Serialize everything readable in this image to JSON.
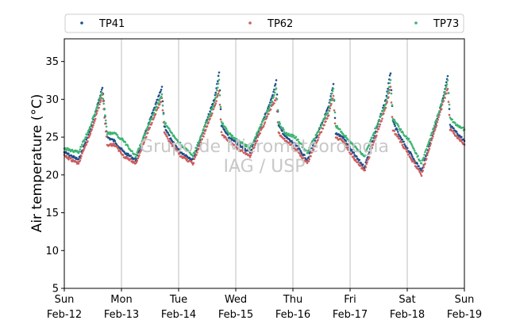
{
  "chart_data": {
    "type": "scatter",
    "title": "",
    "xlabel": "",
    "ylabel": "Air temperature (°C)",
    "ylim": [
      5,
      38
    ],
    "yticks": [
      5,
      10,
      15,
      20,
      25,
      30,
      35
    ],
    "xlim": [
      "2017-02-12 00:00",
      "2017-02-19 00:00"
    ],
    "xticks": [
      {
        "weekday": "Sun",
        "date": "Feb-12"
      },
      {
        "weekday": "Mon",
        "date": "Feb-13"
      },
      {
        "weekday": "Tue",
        "date": "Feb-14"
      },
      {
        "weekday": "Wed",
        "date": "Feb-15"
      },
      {
        "weekday": "Thu",
        "date": "Feb-16"
      },
      {
        "weekday": "Fri",
        "date": "Feb-17"
      },
      {
        "weekday": "Sat",
        "date": "Feb-18"
      },
      {
        "weekday": "Sun",
        "date": "Feb-19"
      }
    ],
    "grid": "vertical at day boundaries",
    "legend": {
      "placement": "top, above plot",
      "columns": 3
    },
    "watermark": [
      "Grupo de Micrometeorologia",
      "IAG / USP"
    ],
    "series": [
      {
        "name": "TP41",
        "color": "#1f4e8c",
        "x": [
          "2017-02-12 00:00",
          "2017-02-12 06:00",
          "2017-02-12 11:00",
          "2017-02-12 16:00",
          "2017-02-12 18:00",
          "2017-02-12 21:00",
          "2017-02-13 01:00",
          "2017-02-13 06:00",
          "2017-02-13 14:00",
          "2017-02-13 17:00",
          "2017-02-13 18:00",
          "2017-02-13 21:00",
          "2017-02-14 01:00",
          "2017-02-14 06:00",
          "2017-02-14 15:00",
          "2017-02-14 17:00",
          "2017-02-14 18:00",
          "2017-02-14 21:00",
          "2017-02-15 01:00",
          "2017-02-15 06:00",
          "2017-02-15 15:00",
          "2017-02-15 17:00",
          "2017-02-15 18:00",
          "2017-02-15 21:00",
          "2017-02-16 01:00",
          "2017-02-16 06:00",
          "2017-02-16 15:00",
          "2017-02-16 17:00",
          "2017-02-16 18:00",
          "2017-02-16 21:00",
          "2017-02-17 01:00",
          "2017-02-17 06:00",
          "2017-02-17 15:00",
          "2017-02-17 17:00",
          "2017-02-17 18:00",
          "2017-02-17 21:00",
          "2017-02-18 01:00",
          "2017-02-18 06:00",
          "2017-02-18 15:00",
          "2017-02-18 17:00",
          "2017-02-18 18:00",
          "2017-02-18 21:00",
          "2017-02-19 00:00"
        ],
        "y": [
          23.0,
          22.0,
          26.0,
          31.5,
          25.0,
          24.5,
          23.0,
          22.0,
          29.0,
          31.5,
          26.5,
          24.5,
          23.0,
          22.0,
          30.0,
          33.5,
          26.5,
          25.0,
          24.0,
          23.0,
          30.0,
          32.5,
          26.5,
          25.0,
          24.0,
          22.0,
          29.0,
          32.0,
          25.5,
          25.0,
          23.0,
          21.0,
          30.0,
          33.5,
          27.0,
          25.0,
          23.0,
          20.5,
          30.0,
          33.0,
          26.5,
          25.5,
          24.5
        ]
      },
      {
        "name": "TP62",
        "color": "#cd5c5c",
        "x": [
          "2017-02-12 00:00",
          "2017-02-12 06:00",
          "2017-02-12 11:00",
          "2017-02-12 16:00",
          "2017-02-12 18:00",
          "2017-02-12 21:00",
          "2017-02-13 01:00",
          "2017-02-13 06:00",
          "2017-02-13 14:00",
          "2017-02-13 17:00",
          "2017-02-13 18:00",
          "2017-02-13 21:00",
          "2017-02-14 01:00",
          "2017-02-14 06:00",
          "2017-02-14 15:00",
          "2017-02-14 17:00",
          "2017-02-14 18:00",
          "2017-02-14 21:00",
          "2017-02-15 01:00",
          "2017-02-15 06:00",
          "2017-02-15 15:00",
          "2017-02-15 17:00",
          "2017-02-15 18:00",
          "2017-02-15 21:00",
          "2017-02-16 01:00",
          "2017-02-16 06:00",
          "2017-02-16 15:00",
          "2017-02-16 17:00",
          "2017-02-16 18:00",
          "2017-02-16 21:00",
          "2017-02-17 01:00",
          "2017-02-17 06:00",
          "2017-02-17 15:00",
          "2017-02-17 17:00",
          "2017-02-17 18:00",
          "2017-02-17 21:00",
          "2017-02-18 01:00",
          "2017-02-18 06:00",
          "2017-02-18 15:00",
          "2017-02-18 17:00",
          "2017-02-18 18:00",
          "2017-02-18 21:00",
          "2017-02-19 00:00"
        ],
        "y": [
          22.5,
          21.5,
          25.5,
          30.5,
          24.0,
          24.0,
          22.5,
          21.5,
          28.0,
          30.0,
          25.5,
          24.0,
          22.5,
          21.5,
          29.0,
          31.0,
          25.5,
          24.5,
          23.5,
          22.5,
          29.0,
          30.0,
          25.5,
          24.5,
          23.5,
          21.5,
          28.0,
          30.5,
          25.0,
          24.5,
          22.5,
          20.5,
          29.0,
          31.5,
          26.0,
          24.5,
          22.5,
          20.0,
          29.5,
          31.5,
          26.0,
          25.0,
          24.0
        ]
      },
      {
        "name": "TP73",
        "color": "#3cb371",
        "x": [
          "2017-02-12 00:00",
          "2017-02-12 06:00",
          "2017-02-12 11:00",
          "2017-02-12 16:00",
          "2017-02-12 18:00",
          "2017-02-12 21:00",
          "2017-02-13 01:00",
          "2017-02-13 06:00",
          "2017-02-13 14:00",
          "2017-02-13 17:00",
          "2017-02-13 18:00",
          "2017-02-13 21:00",
          "2017-02-14 01:00",
          "2017-02-14 06:00",
          "2017-02-14 15:00",
          "2017-02-14 17:00",
          "2017-02-14 18:00",
          "2017-02-14 21:00",
          "2017-02-15 01:00",
          "2017-02-15 06:00",
          "2017-02-15 15:00",
          "2017-02-15 17:00",
          "2017-02-15 18:00",
          "2017-02-15 21:00",
          "2017-02-16 01:00",
          "2017-02-16 06:00",
          "2017-02-16 15:00",
          "2017-02-16 17:00",
          "2017-02-16 18:00",
          "2017-02-16 21:00",
          "2017-02-17 01:00",
          "2017-02-17 06:00",
          "2017-02-17 15:00",
          "2017-02-17 17:00",
          "2017-02-17 18:00",
          "2017-02-17 21:00",
          "2017-02-18 01:00",
          "2017-02-18 06:00",
          "2017-02-18 15:00",
          "2017-02-18 17:00",
          "2017-02-18 18:00",
          "2017-02-18 21:00",
          "2017-02-19 00:00"
        ],
        "y": [
          23.5,
          23.0,
          26.5,
          31.0,
          25.5,
          25.5,
          24.5,
          22.5,
          28.5,
          30.5,
          27.0,
          25.5,
          24.0,
          22.5,
          29.5,
          32.5,
          27.0,
          25.5,
          24.5,
          23.5,
          29.5,
          31.5,
          27.0,
          25.5,
          25.0,
          23.0,
          28.5,
          31.5,
          26.5,
          25.5,
          24.0,
          22.5,
          29.5,
          32.5,
          27.5,
          26.0,
          24.5,
          21.5,
          30.0,
          32.5,
          27.5,
          26.5,
          26.0
        ]
      }
    ]
  }
}
